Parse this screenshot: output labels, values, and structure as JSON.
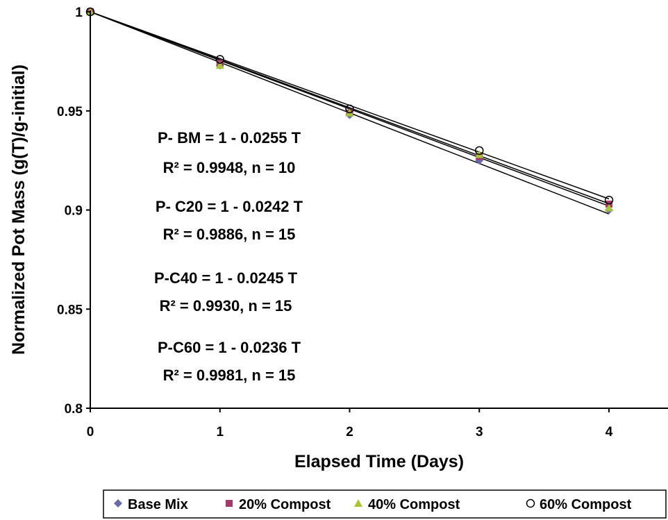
{
  "chart_data": {
    "type": "scatter",
    "xlabel": "Elapsed Time (Days)",
    "ylabel": "Normalized Pot Mass (g(T)/g-initial)",
    "xlim": [
      0,
      4.5
    ],
    "ylim": [
      0.8,
      1.0
    ],
    "x_ticks": [
      0,
      1,
      2,
      3,
      4
    ],
    "y_ticks": [
      0.8,
      0.85,
      0.9,
      0.95,
      1.0
    ],
    "x_tick_labels": [
      "0",
      "1",
      "2",
      "3",
      "4"
    ],
    "y_tick_labels": [
      "0.8",
      "0.85",
      "0.9",
      "0.95",
      "1"
    ],
    "grid": false,
    "legend_position": "bottom",
    "series": [
      {
        "name": "Base Mix",
        "marker": "diamond",
        "color": "#6a6aa8",
        "x": [
          0,
          1,
          2,
          3,
          4
        ],
        "y": [
          1.0,
          0.973,
          0.948,
          0.925,
          0.9
        ],
        "trend": {
          "intercept": 1,
          "slope": -0.0255
        }
      },
      {
        "name": "20% Compost",
        "marker": "square",
        "color": "#a43a6a",
        "x": [
          0,
          1,
          2,
          3,
          4
        ],
        "y": [
          1.0,
          0.974,
          0.949,
          0.927,
          0.903
        ],
        "trend": {
          "intercept": 1,
          "slope": -0.0242
        }
      },
      {
        "name": "40% Compost",
        "marker": "triangle",
        "color": "#a8c23a",
        "x": [
          0,
          1,
          2,
          3,
          4
        ],
        "y": [
          1.0,
          0.973,
          0.949,
          0.928,
          0.901
        ],
        "trend": {
          "intercept": 1,
          "slope": -0.0245
        }
      },
      {
        "name": "60% Compost",
        "marker": "circle-open",
        "color": "#000000",
        "x": [
          0,
          1,
          2,
          3,
          4
        ],
        "y": [
          1.0,
          0.976,
          0.951,
          0.93,
          0.905
        ],
        "trend": {
          "intercept": 1,
          "slope": -0.0236
        }
      }
    ],
    "annotations": [
      {
        "line1": "P- BM = 1 - 0.0255 T",
        "line2": "R² = 0.9948, n = 10"
      },
      {
        "line1": "P- C20 = 1 - 0.0242 T",
        "line2": "R² = 0.9886, n = 15"
      },
      {
        "line1": "P-C40 = 1 - 0.0245 T",
        "line2": "R² = 0.9930, n = 15"
      },
      {
        "line1": "P-C60  = 1 - 0.0236 T",
        "line2": "R² = 0.9981, n = 15"
      }
    ]
  }
}
